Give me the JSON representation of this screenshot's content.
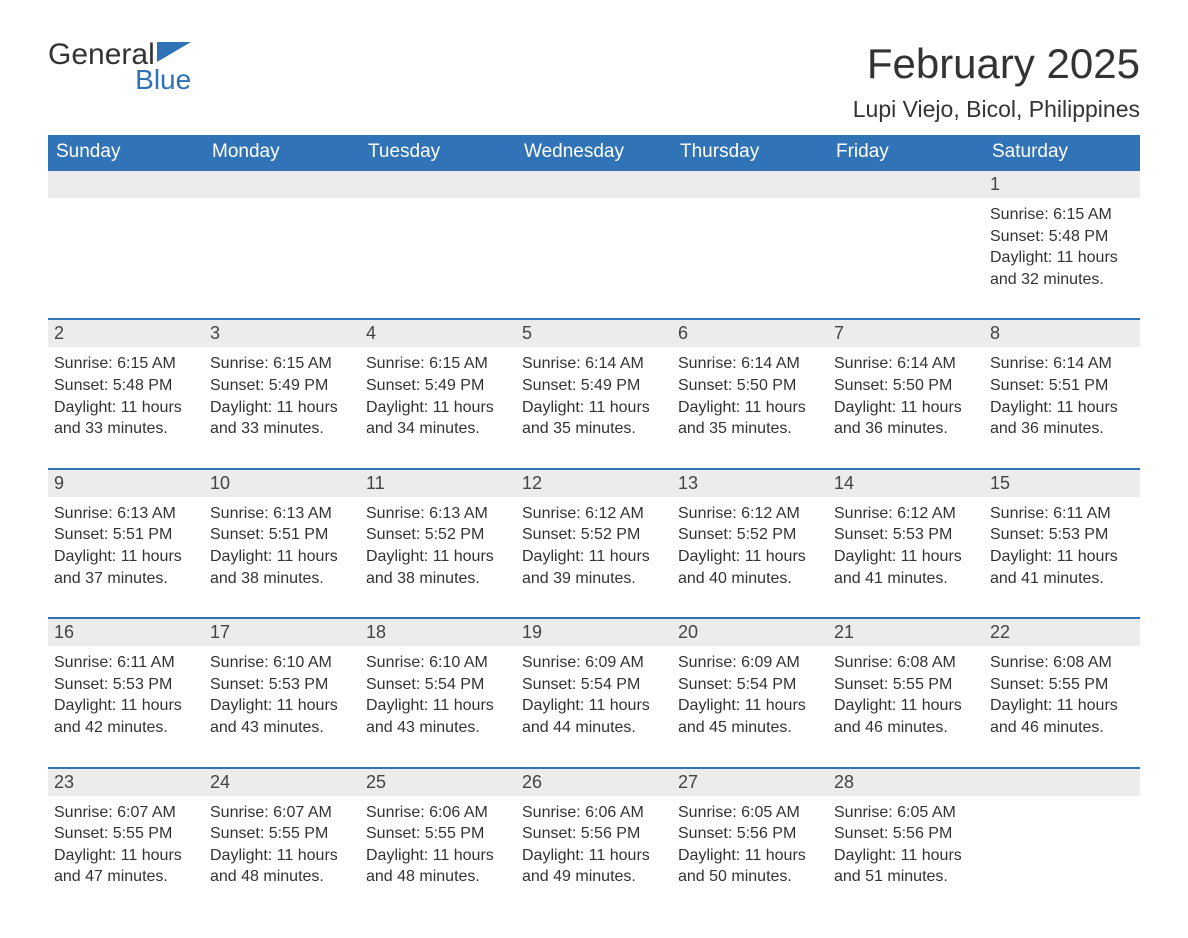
{
  "brand": {
    "general": "General",
    "blue": "Blue"
  },
  "title": "February 2025",
  "location": "Lupi Viejo, Bicol, Philippines",
  "colors": {
    "header_bg": "#3173b7",
    "header_text": "#ffffff",
    "daynum_bg": "#ececec",
    "week_divider": "#3173b7",
    "body_text": "#333333",
    "background": "#ffffff",
    "logo_blue": "#2f72b6"
  },
  "fonts": {
    "title_size_pt": 32,
    "location_size_pt": 17,
    "dow_size_pt": 14,
    "daynum_size_pt": 14,
    "cell_size_pt": 12
  },
  "days_of_week": [
    "Sunday",
    "Monday",
    "Tuesday",
    "Wednesday",
    "Thursday",
    "Friday",
    "Saturday"
  ],
  "weeks": [
    {
      "nums": [
        "",
        "",
        "",
        "",
        "",
        "",
        "1"
      ],
      "cells": [
        null,
        null,
        null,
        null,
        null,
        null,
        {
          "sunrise": "Sunrise: 6:15 AM",
          "sunset": "Sunset: 5:48 PM",
          "daylight": "Daylight: 11 hours and 32 minutes."
        }
      ]
    },
    {
      "nums": [
        "2",
        "3",
        "4",
        "5",
        "6",
        "7",
        "8"
      ],
      "cells": [
        {
          "sunrise": "Sunrise: 6:15 AM",
          "sunset": "Sunset: 5:48 PM",
          "daylight": "Daylight: 11 hours and 33 minutes."
        },
        {
          "sunrise": "Sunrise: 6:15 AM",
          "sunset": "Sunset: 5:49 PM",
          "daylight": "Daylight: 11 hours and 33 minutes."
        },
        {
          "sunrise": "Sunrise: 6:15 AM",
          "sunset": "Sunset: 5:49 PM",
          "daylight": "Daylight: 11 hours and 34 minutes."
        },
        {
          "sunrise": "Sunrise: 6:14 AM",
          "sunset": "Sunset: 5:49 PM",
          "daylight": "Daylight: 11 hours and 35 minutes."
        },
        {
          "sunrise": "Sunrise: 6:14 AM",
          "sunset": "Sunset: 5:50 PM",
          "daylight": "Daylight: 11 hours and 35 minutes."
        },
        {
          "sunrise": "Sunrise: 6:14 AM",
          "sunset": "Sunset: 5:50 PM",
          "daylight": "Daylight: 11 hours and 36 minutes."
        },
        {
          "sunrise": "Sunrise: 6:14 AM",
          "sunset": "Sunset: 5:51 PM",
          "daylight": "Daylight: 11 hours and 36 minutes."
        }
      ]
    },
    {
      "nums": [
        "9",
        "10",
        "11",
        "12",
        "13",
        "14",
        "15"
      ],
      "cells": [
        {
          "sunrise": "Sunrise: 6:13 AM",
          "sunset": "Sunset: 5:51 PM",
          "daylight": "Daylight: 11 hours and 37 minutes."
        },
        {
          "sunrise": "Sunrise: 6:13 AM",
          "sunset": "Sunset: 5:51 PM",
          "daylight": "Daylight: 11 hours and 38 minutes."
        },
        {
          "sunrise": "Sunrise: 6:13 AM",
          "sunset": "Sunset: 5:52 PM",
          "daylight": "Daylight: 11 hours and 38 minutes."
        },
        {
          "sunrise": "Sunrise: 6:12 AM",
          "sunset": "Sunset: 5:52 PM",
          "daylight": "Daylight: 11 hours and 39 minutes."
        },
        {
          "sunrise": "Sunrise: 6:12 AM",
          "sunset": "Sunset: 5:52 PM",
          "daylight": "Daylight: 11 hours and 40 minutes."
        },
        {
          "sunrise": "Sunrise: 6:12 AM",
          "sunset": "Sunset: 5:53 PM",
          "daylight": "Daylight: 11 hours and 41 minutes."
        },
        {
          "sunrise": "Sunrise: 6:11 AM",
          "sunset": "Sunset: 5:53 PM",
          "daylight": "Daylight: 11 hours and 41 minutes."
        }
      ]
    },
    {
      "nums": [
        "16",
        "17",
        "18",
        "19",
        "20",
        "21",
        "22"
      ],
      "cells": [
        {
          "sunrise": "Sunrise: 6:11 AM",
          "sunset": "Sunset: 5:53 PM",
          "daylight": "Daylight: 11 hours and 42 minutes."
        },
        {
          "sunrise": "Sunrise: 6:10 AM",
          "sunset": "Sunset: 5:53 PM",
          "daylight": "Daylight: 11 hours and 43 minutes."
        },
        {
          "sunrise": "Sunrise: 6:10 AM",
          "sunset": "Sunset: 5:54 PM",
          "daylight": "Daylight: 11 hours and 43 minutes."
        },
        {
          "sunrise": "Sunrise: 6:09 AM",
          "sunset": "Sunset: 5:54 PM",
          "daylight": "Daylight: 11 hours and 44 minutes."
        },
        {
          "sunrise": "Sunrise: 6:09 AM",
          "sunset": "Sunset: 5:54 PM",
          "daylight": "Daylight: 11 hours and 45 minutes."
        },
        {
          "sunrise": "Sunrise: 6:08 AM",
          "sunset": "Sunset: 5:55 PM",
          "daylight": "Daylight: 11 hours and 46 minutes."
        },
        {
          "sunrise": "Sunrise: 6:08 AM",
          "sunset": "Sunset: 5:55 PM",
          "daylight": "Daylight: 11 hours and 46 minutes."
        }
      ]
    },
    {
      "nums": [
        "23",
        "24",
        "25",
        "26",
        "27",
        "28",
        ""
      ],
      "cells": [
        {
          "sunrise": "Sunrise: 6:07 AM",
          "sunset": "Sunset: 5:55 PM",
          "daylight": "Daylight: 11 hours and 47 minutes."
        },
        {
          "sunrise": "Sunrise: 6:07 AM",
          "sunset": "Sunset: 5:55 PM",
          "daylight": "Daylight: 11 hours and 48 minutes."
        },
        {
          "sunrise": "Sunrise: 6:06 AM",
          "sunset": "Sunset: 5:55 PM",
          "daylight": "Daylight: 11 hours and 48 minutes."
        },
        {
          "sunrise": "Sunrise: 6:06 AM",
          "sunset": "Sunset: 5:56 PM",
          "daylight": "Daylight: 11 hours and 49 minutes."
        },
        {
          "sunrise": "Sunrise: 6:05 AM",
          "sunset": "Sunset: 5:56 PM",
          "daylight": "Daylight: 11 hours and 50 minutes."
        },
        {
          "sunrise": "Sunrise: 6:05 AM",
          "sunset": "Sunset: 5:56 PM",
          "daylight": "Daylight: 11 hours and 51 minutes."
        },
        null
      ]
    }
  ]
}
